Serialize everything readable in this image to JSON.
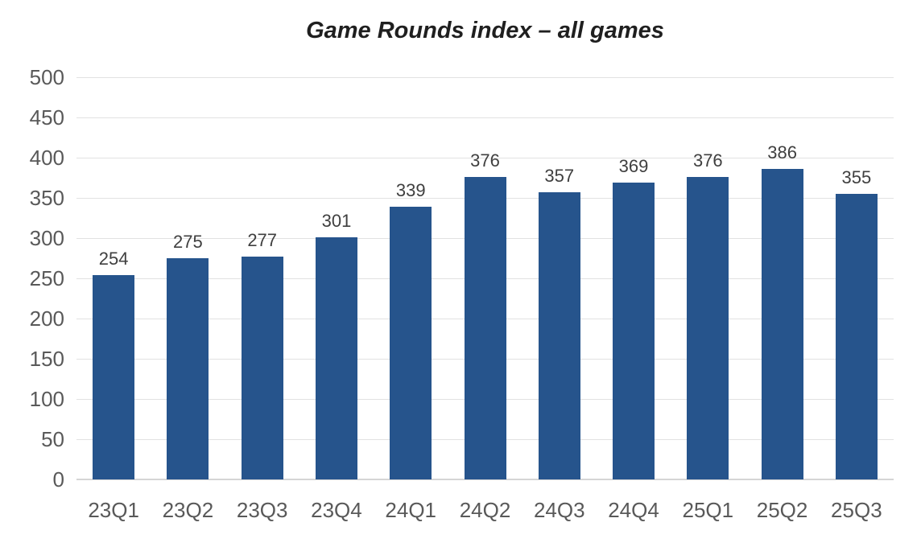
{
  "chart_data": {
    "type": "bar",
    "title": "Game Rounds index – all games",
    "categories": [
      "23Q1",
      "23Q2",
      "23Q3",
      "23Q4",
      "24Q1",
      "24Q2",
      "24Q3",
      "24Q4",
      "25Q1",
      "25Q2",
      "25Q3"
    ],
    "values": [
      254,
      275,
      277,
      301,
      339,
      376,
      357,
      369,
      376,
      386,
      355
    ],
    "xlabel": "",
    "ylabel": "",
    "ylim": [
      0,
      500
    ],
    "ytick_step": 50,
    "ytick_labels": [
      "0",
      "50",
      "100",
      "150",
      "200",
      "250",
      "300",
      "350",
      "400",
      "450",
      "500"
    ],
    "grid": true,
    "legend": false,
    "data_labels": true,
    "colors": {
      "bar": "#26548c",
      "data_label": "#3f3f3f",
      "axis_tick_label": "#595959",
      "gridline": "#e2e2e2",
      "zero_line": "#d5d5d5",
      "title": "#1f1f1f",
      "background": "#ffffff"
    }
  }
}
